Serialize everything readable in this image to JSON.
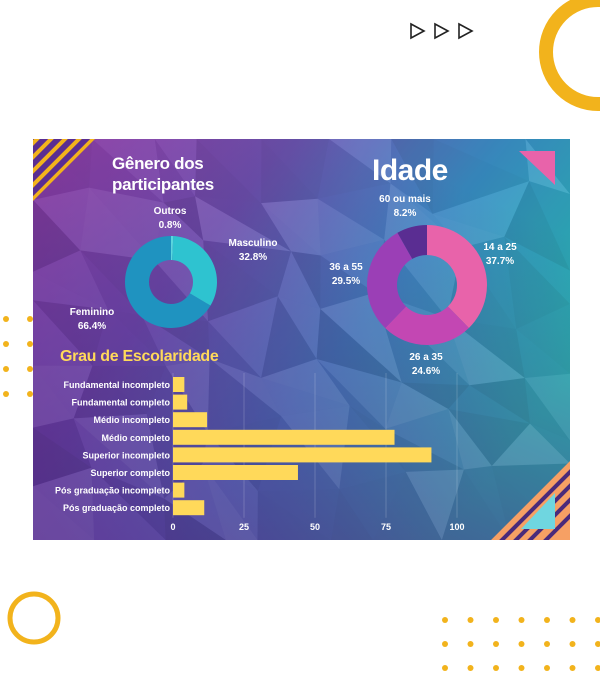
{
  "colors": {
    "accent": "#f2b31c",
    "bar": "#ffd95a",
    "gender_masculino": "#2ec3d0",
    "gender_feminino": "#1f93c0",
    "gender_outros": "#5ad6de",
    "age_14_25": "#e863aa",
    "age_26_35": "#c347b3",
    "age_36_55": "#9b3fb6",
    "age_60": "#5a2d92",
    "age_title": "#ffd95a"
  },
  "decorations": {
    "play_icons": [
      "triangle-outline-icon",
      "triangle-outline-icon",
      "triangle-outline-icon"
    ]
  },
  "gender": {
    "title_line1": "Gênero dos",
    "title_line2": "participantes",
    "labels": {
      "outros_name": "Outros",
      "outros_pct": "0.8%",
      "masculino_name": "Masculino",
      "masculino_pct": "32.8%",
      "feminino_name": "Feminino",
      "feminino_pct": "66.4%"
    }
  },
  "age": {
    "title": "Idade",
    "labels": {
      "a60_name": "60 ou mais",
      "a60_pct": "8.2%",
      "a14_name": "14 a 25",
      "a14_pct": "37.7%",
      "a36_name": "36 a 55",
      "a36_pct": "29.5%",
      "a26_name": "26 a 35",
      "a26_pct": "24.6%"
    }
  },
  "education": {
    "title": "Grau de Escolaridade"
  },
  "chart_data": [
    {
      "type": "pie",
      "title": "Gênero dos participantes",
      "categories": [
        "Masculino",
        "Feminino",
        "Outros"
      ],
      "values": [
        32.8,
        66.4,
        0.8
      ]
    },
    {
      "type": "pie",
      "title": "Idade",
      "categories": [
        "14 a 25",
        "26 a 35",
        "36 a 55",
        "60 ou mais"
      ],
      "values": [
        37.7,
        24.6,
        29.5,
        8.2
      ]
    },
    {
      "type": "bar",
      "title": "Grau de Escolaridade",
      "categories": [
        "Fundamental incompleto",
        "Fundamental completo",
        "Médio incompleto",
        "Médio completo",
        "Superior incompleto",
        "Superior completo",
        "Pós graduação incompleto",
        "Pós graduação completo"
      ],
      "values": [
        4,
        5,
        12,
        78,
        91,
        44,
        4,
        11
      ],
      "xlim": [
        0,
        100
      ],
      "xticks": [
        "0",
        "25",
        "50",
        "75",
        "100"
      ],
      "grid": true
    }
  ]
}
